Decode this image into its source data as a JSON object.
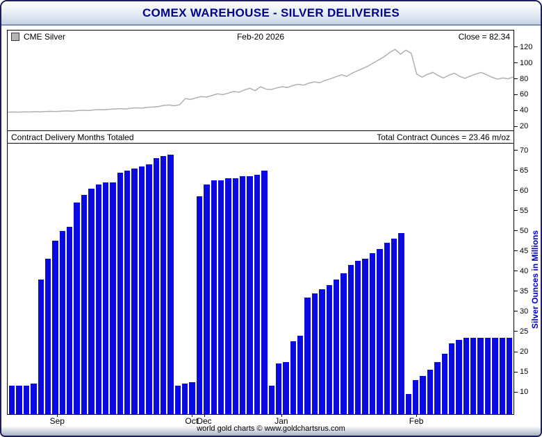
{
  "window": {
    "title": "COMEX WAREHOUSE - SILVER DELIVERIES",
    "footer": "world gold charts © www.goldchartsrus.com"
  },
  "colors": {
    "bar": "#0a0ae0",
    "line": "#b0b0b0",
    "title_text": "#00008b",
    "axis_title_blue": "#0000cc"
  },
  "chart_data": [
    {
      "type": "line",
      "name": "CME Silver",
      "legend": "CME Silver",
      "date_label": "Feb-20  2026",
      "close_label": "Close = 82.34",
      "close": 82.34,
      "ylim": [
        15,
        125
      ],
      "yticks": [
        20,
        40,
        60,
        80,
        100,
        120
      ],
      "legend_position": "top-left",
      "grid": false,
      "values": [
        38,
        38.2,
        38,
        38.4,
        38.2,
        38.6,
        38.4,
        38.8,
        39,
        38.8,
        39.2,
        39.5,
        39.2,
        40,
        40.3,
        40,
        40.8,
        41.2,
        41,
        41.6,
        42,
        42.4,
        42,
        43,
        43.4,
        43,
        44,
        44.5,
        45,
        46.5,
        47,
        46,
        47.5,
        55,
        54,
        56,
        57.5,
        57,
        59,
        61,
        60,
        62,
        64,
        63,
        66,
        68,
        65,
        70,
        67,
        66.5,
        68.5,
        70,
        69,
        71.5,
        73,
        72,
        74.5,
        76,
        75,
        78,
        80,
        82.5,
        85,
        83,
        87,
        90,
        93,
        96,
        100,
        104,
        108,
        113,
        117,
        111,
        116,
        112,
        86,
        82,
        85.5,
        88,
        84,
        81,
        84.5,
        87,
        83,
        80.5,
        83.5,
        86,
        88,
        85,
        82,
        79.5,
        81,
        80,
        82.34
      ]
    },
    {
      "type": "bar",
      "title": "Contract Delivery Months Totaled",
      "total_label": "Total Contract Ounces = 23.46 m/oz",
      "total_contract_ounces_moz": 23.46,
      "ylabel": "Silver Ounces in Millions",
      "ylim": [
        4.5,
        71.5
      ],
      "yticks": [
        10,
        15,
        20,
        25,
        30,
        35,
        40,
        45,
        50,
        55,
        60,
        65,
        70
      ],
      "grid": false,
      "values": [
        11.5,
        11.5,
        11.5,
        12,
        38,
        43,
        47.5,
        50,
        51,
        57,
        59,
        60.5,
        61.5,
        62,
        62,
        64.5,
        65,
        65.5,
        66,
        66.5,
        68,
        68.5,
        69,
        11.5,
        12,
        12.5,
        58.5,
        61.5,
        62.5,
        62.5,
        63,
        63,
        63.5,
        63.5,
        64,
        65,
        11.5,
        17,
        17.5,
        22.5,
        24,
        33.5,
        34.5,
        35.5,
        36.5,
        38,
        39.5,
        41.5,
        42.5,
        43,
        44.5,
        45.5,
        47,
        48,
        49.5,
        9.5,
        13,
        14,
        15.5,
        17.5,
        19.5,
        22,
        23,
        23.5,
        23.5,
        23.5,
        23.5,
        23.5,
        23.5,
        23.46
      ]
    }
  ],
  "xaxis": {
    "labels": [
      {
        "text": "Sep",
        "x": 0.099
      },
      {
        "text": "Oct",
        "x": 0.364
      },
      {
        "text": "Dec",
        "x": 0.389
      },
      {
        "text": "Jan",
        "x": 0.541
      },
      {
        "text": "Feb",
        "x": 0.807
      }
    ]
  }
}
